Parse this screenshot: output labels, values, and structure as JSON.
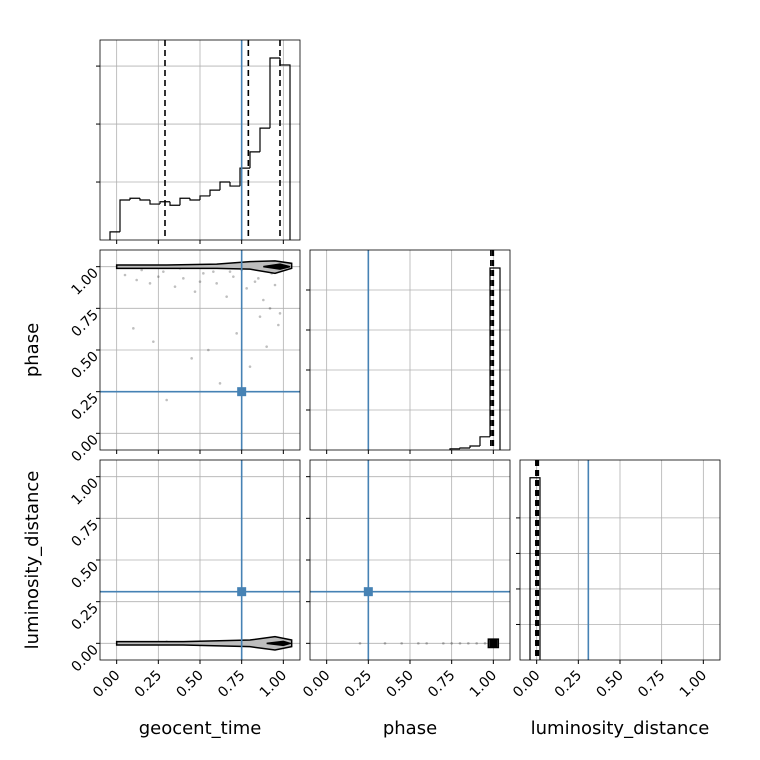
{
  "chart_data": {
    "type": "corner",
    "parameters": [
      "geocent_time",
      "phase",
      "luminosity_distance"
    ],
    "truths": [
      0.75,
      0.25,
      0.31
    ],
    "truth_color": "#4682b4",
    "lim": [
      -0.1,
      1.1
    ],
    "ticks": [
      {
        "value": 0,
        "label": "0.00"
      },
      {
        "value": 0.25,
        "label": "0.25"
      },
      {
        "value": 0.5,
        "label": "0.50"
      },
      {
        "value": 0.75,
        "label": "0.75"
      },
      {
        "value": 1,
        "label": "1.00"
      }
    ],
    "grid": true,
    "histograms": [
      {
        "bins": [
          -0.04,
          0.02,
          0.08,
          0.14,
          0.2,
          0.26,
          0.32,
          0.38,
          0.44,
          0.5,
          0.56,
          0.62,
          0.68,
          0.74,
          0.8,
          0.86,
          0.92,
          0.98,
          1.04
        ],
        "counts": [
          0.14,
          0.69,
          0.72,
          0.69,
          0.62,
          0.66,
          0.6,
          0.72,
          0.69,
          0.76,
          0.86,
          1.0,
          0.93,
          1.24,
          1.52,
          1.93,
          3.14,
          3.02
        ],
        "quantiles": [
          0.29,
          0.79,
          0.98
        ],
        "ylim": [
          0,
          3.45
        ],
        "yticks": [
          1,
          2,
          3
        ]
      },
      {
        "bins": [
          0.74,
          0.8,
          0.86,
          0.92,
          0.98,
          1.04
        ],
        "counts": [
          0.03,
          0.05,
          0.1,
          0.33,
          4.55
        ],
        "quantiles": [
          0.985,
          0.995,
          1.0
        ],
        "ylim": [
          0,
          5
        ],
        "yticks": [
          1,
          2,
          3,
          4
        ]
      },
      {
        "bins": [
          -0.04,
          0.02
        ],
        "counts": [
          5.13
        ],
        "quantiles": [
          -0.005,
          0.002,
          0.01
        ],
        "ylim": [
          0,
          5.63
        ],
        "yticks": [
          1,
          2,
          3,
          4
        ]
      }
    ],
    "pairs": [
      {
        "points": {
          "x": [
            0.05,
            0.12,
            0.2,
            0.28,
            0.35,
            0.4,
            0.47,
            0.52,
            0.6,
            0.66,
            0.7,
            0.78,
            0.83,
            0.88,
            0.92,
            0.95,
            0.98,
            0.1,
            0.22,
            0.3,
            0.45,
            0.55,
            0.62,
            0.72,
            0.8,
            0.86,
            0.9,
            0.97,
            0.15,
            0.38,
            0.58,
            0.75,
            0.93,
            0.99,
            0.25,
            0.5,
            0.68,
            0.85
          ],
          "y": [
            0.95,
            0.92,
            0.9,
            0.97,
            0.88,
            0.93,
            0.85,
            0.96,
            0.9,
            0.82,
            0.94,
            0.87,
            0.91,
            0.8,
            0.75,
            0.89,
            0.72,
            0.63,
            0.55,
            0.2,
            0.45,
            0.5,
            0.3,
            0.6,
            0.4,
            0.7,
            0.52,
            0.65,
            0.98,
            0.99,
            0.97,
            0.98,
            0.96,
            0.99,
            0.94,
            0.91,
            0.97,
            0.93
          ]
        },
        "contours": [
          {
            "x": [
              0,
              0.3,
              0.6,
              0.8,
              0.95,
              1.05,
              1.05,
              0.95,
              0.8,
              0.6,
              0.3,
              0
            ],
            "y": [
              1.01,
              1.01,
              1.015,
              1.03,
              1.035,
              1.02,
              0.99,
              0.96,
              0.985,
              0.99,
              0.99,
              0.99
            ]
          },
          {
            "x": [
              0.88,
              0.98,
              1.04,
              0.98,
              0.88
            ],
            "y": [
              1.0,
              1.015,
              1.0,
              0.985,
              1.0
            ]
          }
        ]
      },
      {
        "points": {
          "x": [
            0.1,
            0.3,
            0.5,
            0.7,
            0.85,
            0.95,
            0.6,
            0.2
          ],
          "y": [
            0.0,
            0.01,
            -0.01,
            0.0,
            0.02,
            -0.02,
            0.01,
            -0.005
          ]
        },
        "contours": [
          {
            "x": [
              0,
              0.4,
              0.8,
              0.95,
              1.05,
              1.05,
              0.95,
              0.8,
              0.4,
              0
            ],
            "y": [
              0.01,
              0.01,
              0.02,
              0.04,
              0.02,
              -0.02,
              -0.04,
              -0.02,
              -0.01,
              -0.01
            ]
          },
          {
            "x": [
              0.9,
              1.0,
              1.04,
              1.0,
              0.9
            ],
            "y": [
              0,
              0.012,
              0,
              -0.012,
              0
            ]
          }
        ]
      },
      {
        "points": {
          "x": [
            0.2,
            0.35,
            0.45,
            0.55,
            0.6,
            0.7,
            0.75,
            0.8,
            0.85,
            0.9,
            0.95,
            0.98
          ],
          "y": [
            0,
            0,
            0,
            0,
            0,
            0,
            0,
            0,
            0,
            0,
            0,
            0
          ]
        },
        "contours": [
          {
            "x": [
              0.97,
              1.03,
              1.03,
              0.97
            ],
            "y": [
              0.025,
              0.025,
              -0.025,
              -0.025
            ]
          },
          {
            "x": [
              0.98,
              1.02,
              1.02,
              0.98
            ],
            "y": [
              0.02,
              0.02,
              -0.02,
              -0.02
            ]
          }
        ]
      }
    ]
  }
}
